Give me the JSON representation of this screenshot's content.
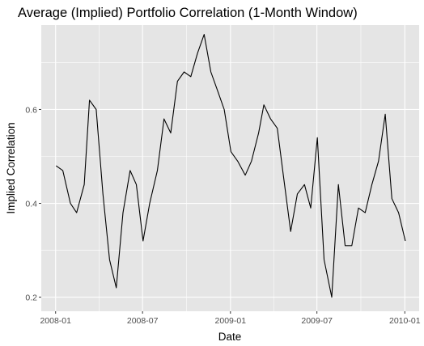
{
  "chart_data": {
    "type": "line",
    "title": "Average (Implied) Portfolio Correlation (1-Month Window)",
    "xlabel": "Date",
    "ylabel": "Implied Correlation",
    "x_ticks": [
      {
        "label": "2008-01",
        "value": "2008-01-01"
      },
      {
        "label": "2008-07",
        "value": "2008-07-01"
      },
      {
        "label": "2009-01",
        "value": "2009-01-01"
      },
      {
        "label": "2009-07",
        "value": "2009-07-01"
      },
      {
        "label": "2010-01",
        "value": "2010-01-01"
      }
    ],
    "y_ticks": [
      0.2,
      0.4,
      0.6
    ],
    "xlim": [
      "2007-12-02",
      "2010-01-31"
    ],
    "ylim": [
      0.17,
      0.78
    ],
    "grid": true,
    "colors": {
      "panel": "#e5e5e5",
      "grid": "#ffffff",
      "line": "#000000"
    },
    "series": [
      {
        "x": [
          "2008-01-02",
          "2008-01-16",
          "2008-02-01",
          "2008-02-14",
          "2008-03-01",
          "2008-03-12",
          "2008-03-26",
          "2008-04-09",
          "2008-04-23",
          "2008-05-07",
          "2008-05-21",
          "2008-06-05",
          "2008-06-18",
          "2008-07-02",
          "2008-07-16",
          "2008-08-01",
          "2008-08-15",
          "2008-08-29",
          "2008-09-12",
          "2008-09-26",
          "2008-10-10",
          "2008-10-24",
          "2008-11-07",
          "2008-11-21",
          "2008-12-05",
          "2008-12-19",
          "2009-01-02",
          "2009-01-16",
          "2009-02-01",
          "2009-02-14",
          "2009-03-01",
          "2009-03-12",
          "2009-03-26",
          "2009-04-09",
          "2009-04-23",
          "2009-05-07",
          "2009-05-21",
          "2009-06-05",
          "2009-06-18",
          "2009-07-02",
          "2009-07-16",
          "2009-08-01",
          "2009-08-15",
          "2009-08-29",
          "2009-09-12",
          "2009-09-26",
          "2009-10-10",
          "2009-10-24",
          "2009-11-07",
          "2009-11-21",
          "2009-12-05",
          "2009-12-19",
          "2010-01-02"
        ],
        "y": [
          0.48,
          0.47,
          0.4,
          0.38,
          0.44,
          0.62,
          0.6,
          0.42,
          0.28,
          0.22,
          0.38,
          0.47,
          0.44,
          0.32,
          0.4,
          0.47,
          0.58,
          0.55,
          0.66,
          0.68,
          0.67,
          0.72,
          0.76,
          0.68,
          0.64,
          0.6,
          0.51,
          0.49,
          0.46,
          0.49,
          0.55,
          0.61,
          0.58,
          0.56,
          0.45,
          0.34,
          0.42,
          0.44,
          0.39,
          0.54,
          0.28,
          0.2,
          0.44,
          0.31,
          0.31,
          0.39,
          0.38,
          0.44,
          0.49,
          0.59,
          0.41,
          0.38,
          0.32
        ]
      }
    ]
  }
}
